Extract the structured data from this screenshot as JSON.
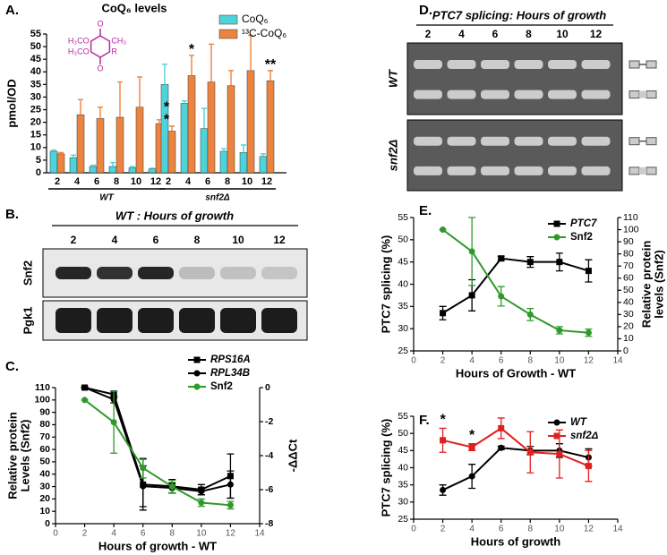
{
  "panel_labels": [
    "A.",
    "B.",
    "C.",
    "D.",
    "E.",
    "F."
  ],
  "blots": [
    {
      "title": "WT : Hours of growth",
      "lanes": [
        "2",
        "4",
        "6",
        "8",
        "10",
        "12"
      ],
      "rows": [
        "Snf2",
        "Pgk1"
      ]
    },
    {
      "title": "PTC7 splicing: Hours of growth",
      "lanes": [
        "2",
        "4",
        "6",
        "8",
        "10",
        "12"
      ],
      "rows": [
        "WT",
        "snf2Δ"
      ]
    }
  ],
  "chart_data": [
    {
      "type": "bar",
      "title": "CoQ₆ levels",
      "ylabel": "pmol/OD",
      "categories": [
        "2",
        "4",
        "6",
        "8",
        "10",
        "12",
        "2",
        "4",
        "6",
        "8",
        "10",
        "12"
      ],
      "groups": [
        "WT",
        "snf2Δ"
      ],
      "series": [
        {
          "name": "CoQ₆",
          "color": "#4fd3da",
          "values": [
            8.5,
            6,
            2.5,
            2.5,
            2,
            1.5,
            35,
            27.5,
            17.5,
            8.5,
            8,
            6.5
          ],
          "errors": [
            0.5,
            1,
            0.5,
            1.5,
            0.5,
            0.3,
            8,
            1,
            8,
            1,
            3,
            1
          ]
        },
        {
          "name": "¹³C-CoQ₆",
          "color": "#ec8440",
          "values": [
            7.5,
            23,
            21.5,
            22,
            26,
            19.5,
            16.5,
            38.5,
            36,
            34.5,
            40.5,
            36.5
          ],
          "errors": [
            0.5,
            6,
            4.5,
            14,
            12,
            1.5,
            2,
            8,
            15,
            6,
            14,
            4
          ]
        }
      ],
      "ylim": [
        0,
        55
      ],
      "yticks": [
        0,
        5,
        10,
        15,
        20,
        25,
        30,
        35,
        40,
        45,
        50,
        55
      ],
      "legend": "upper right",
      "annotations": [
        "*",
        "*",
        "*",
        "**"
      ],
      "structure_labels": [
        "O",
        "O",
        "H₃CO",
        "CH₃",
        "H₃CO",
        "R"
      ]
    },
    {
      "type": "line",
      "xlabel": "Hours of growth - WT",
      "ylabel": [
        "Relative protein",
        "Levels (Snf2)"
      ],
      "y2label": "-ΔΔCt",
      "x": [
        2,
        4,
        6,
        8,
        10,
        12
      ],
      "xlim": [
        0,
        14
      ],
      "xticks": [
        0,
        2,
        4,
        6,
        8,
        10,
        12,
        14
      ],
      "ylim": [
        0,
        110
      ],
      "yticks": [
        0,
        10,
        20,
        30,
        40,
        50,
        60,
        70,
        80,
        90,
        100,
        110
      ],
      "y2lim": [
        -8,
        0
      ],
      "y2ticks": [
        -8,
        -6,
        -4,
        -2,
        0
      ],
      "legend": "upper right",
      "series": [
        {
          "name": "RPS16A",
          "color": "#000000",
          "axis": "y2",
          "marker": "square",
          "italic": true,
          "values": [
            0,
            -0.4,
            -5.7,
            -5.8,
            -6.0,
            -5.2
          ],
          "errors": [
            0.05,
            0.2,
            1.5,
            0.4,
            0.3,
            1.3
          ]
        },
        {
          "name": "RPL34B",
          "color": "#000000",
          "axis": "y2",
          "marker": "circle",
          "italic": true,
          "values": [
            0,
            -0.7,
            -5.8,
            -5.9,
            -6.1,
            -5.7
          ],
          "errors": [
            0.05,
            0.2,
            1.2,
            0.3,
            0.2,
            0.8
          ]
        },
        {
          "name": "Snf2",
          "color": "#2e9a2a",
          "marker": "circle",
          "italic": false,
          "values": [
            100,
            82,
            45,
            30,
            17,
            15
          ],
          "errors": [
            0,
            25,
            8,
            5,
            3,
            3
          ]
        }
      ]
    },
    {
      "type": "line",
      "xlabel": "Hours of Growth - WT",
      "ylabel": "PTC7 splicing (%)",
      "y2label": [
        "Relative protein",
        "levels (Snf2)"
      ],
      "x": [
        2,
        4,
        6,
        8,
        10,
        12
      ],
      "xlim": [
        0,
        14
      ],
      "xticks": [
        0,
        2,
        4,
        6,
        8,
        10,
        12,
        14
      ],
      "ylim": [
        25,
        55
      ],
      "yticks": [
        25,
        30,
        35,
        40,
        45,
        50,
        55
      ],
      "y2lim": [
        0,
        110
      ],
      "y2ticks": [
        0,
        10,
        20,
        30,
        40,
        50,
        60,
        70,
        80,
        90,
        100,
        110
      ],
      "legend": "upper right",
      "series": [
        {
          "name": "PTC7",
          "color": "#000000",
          "marker": "square",
          "italic": true,
          "values": [
            33.5,
            37.5,
            45.8,
            45,
            45,
            43
          ],
          "errors": [
            1.5,
            3.5,
            0.5,
            1.2,
            2,
            2.5
          ]
        },
        {
          "name": "Snf2",
          "color": "#2e9a2a",
          "axis": "y2",
          "marker": "circle",
          "italic": false,
          "values": [
            100,
            82,
            45,
            30,
            17,
            15
          ],
          "errors": [
            0,
            28,
            8,
            5,
            3,
            3
          ]
        }
      ]
    },
    {
      "type": "line",
      "xlabel": "Hours of growth",
      "ylabel": "PTC7 splicing (%)",
      "x": [
        2,
        4,
        6,
        8,
        10,
        12
      ],
      "xlim": [
        0,
        14
      ],
      "xticks": [
        0,
        2,
        4,
        6,
        8,
        10,
        12,
        14
      ],
      "ylim": [
        25,
        55
      ],
      "yticks": [
        25,
        30,
        35,
        40,
        45,
        50,
        55
      ],
      "legend": "upper right",
      "annotations": [
        "*",
        "*"
      ],
      "series": [
        {
          "name": "WT",
          "color": "#000000",
          "marker": "circle",
          "italic": true,
          "values": [
            33.5,
            37.5,
            45.8,
            45,
            45,
            43
          ],
          "errors": [
            1.5,
            3.5,
            0.5,
            1.2,
            2,
            2.5
          ]
        },
        {
          "name": "snf2Δ",
          "color": "#e02020",
          "marker": "square",
          "italic": true,
          "values": [
            48,
            46,
            51.5,
            44.5,
            44,
            40.5
          ],
          "errors": [
            3.5,
            1,
            3,
            6,
            7,
            4.5
          ]
        }
      ]
    }
  ]
}
